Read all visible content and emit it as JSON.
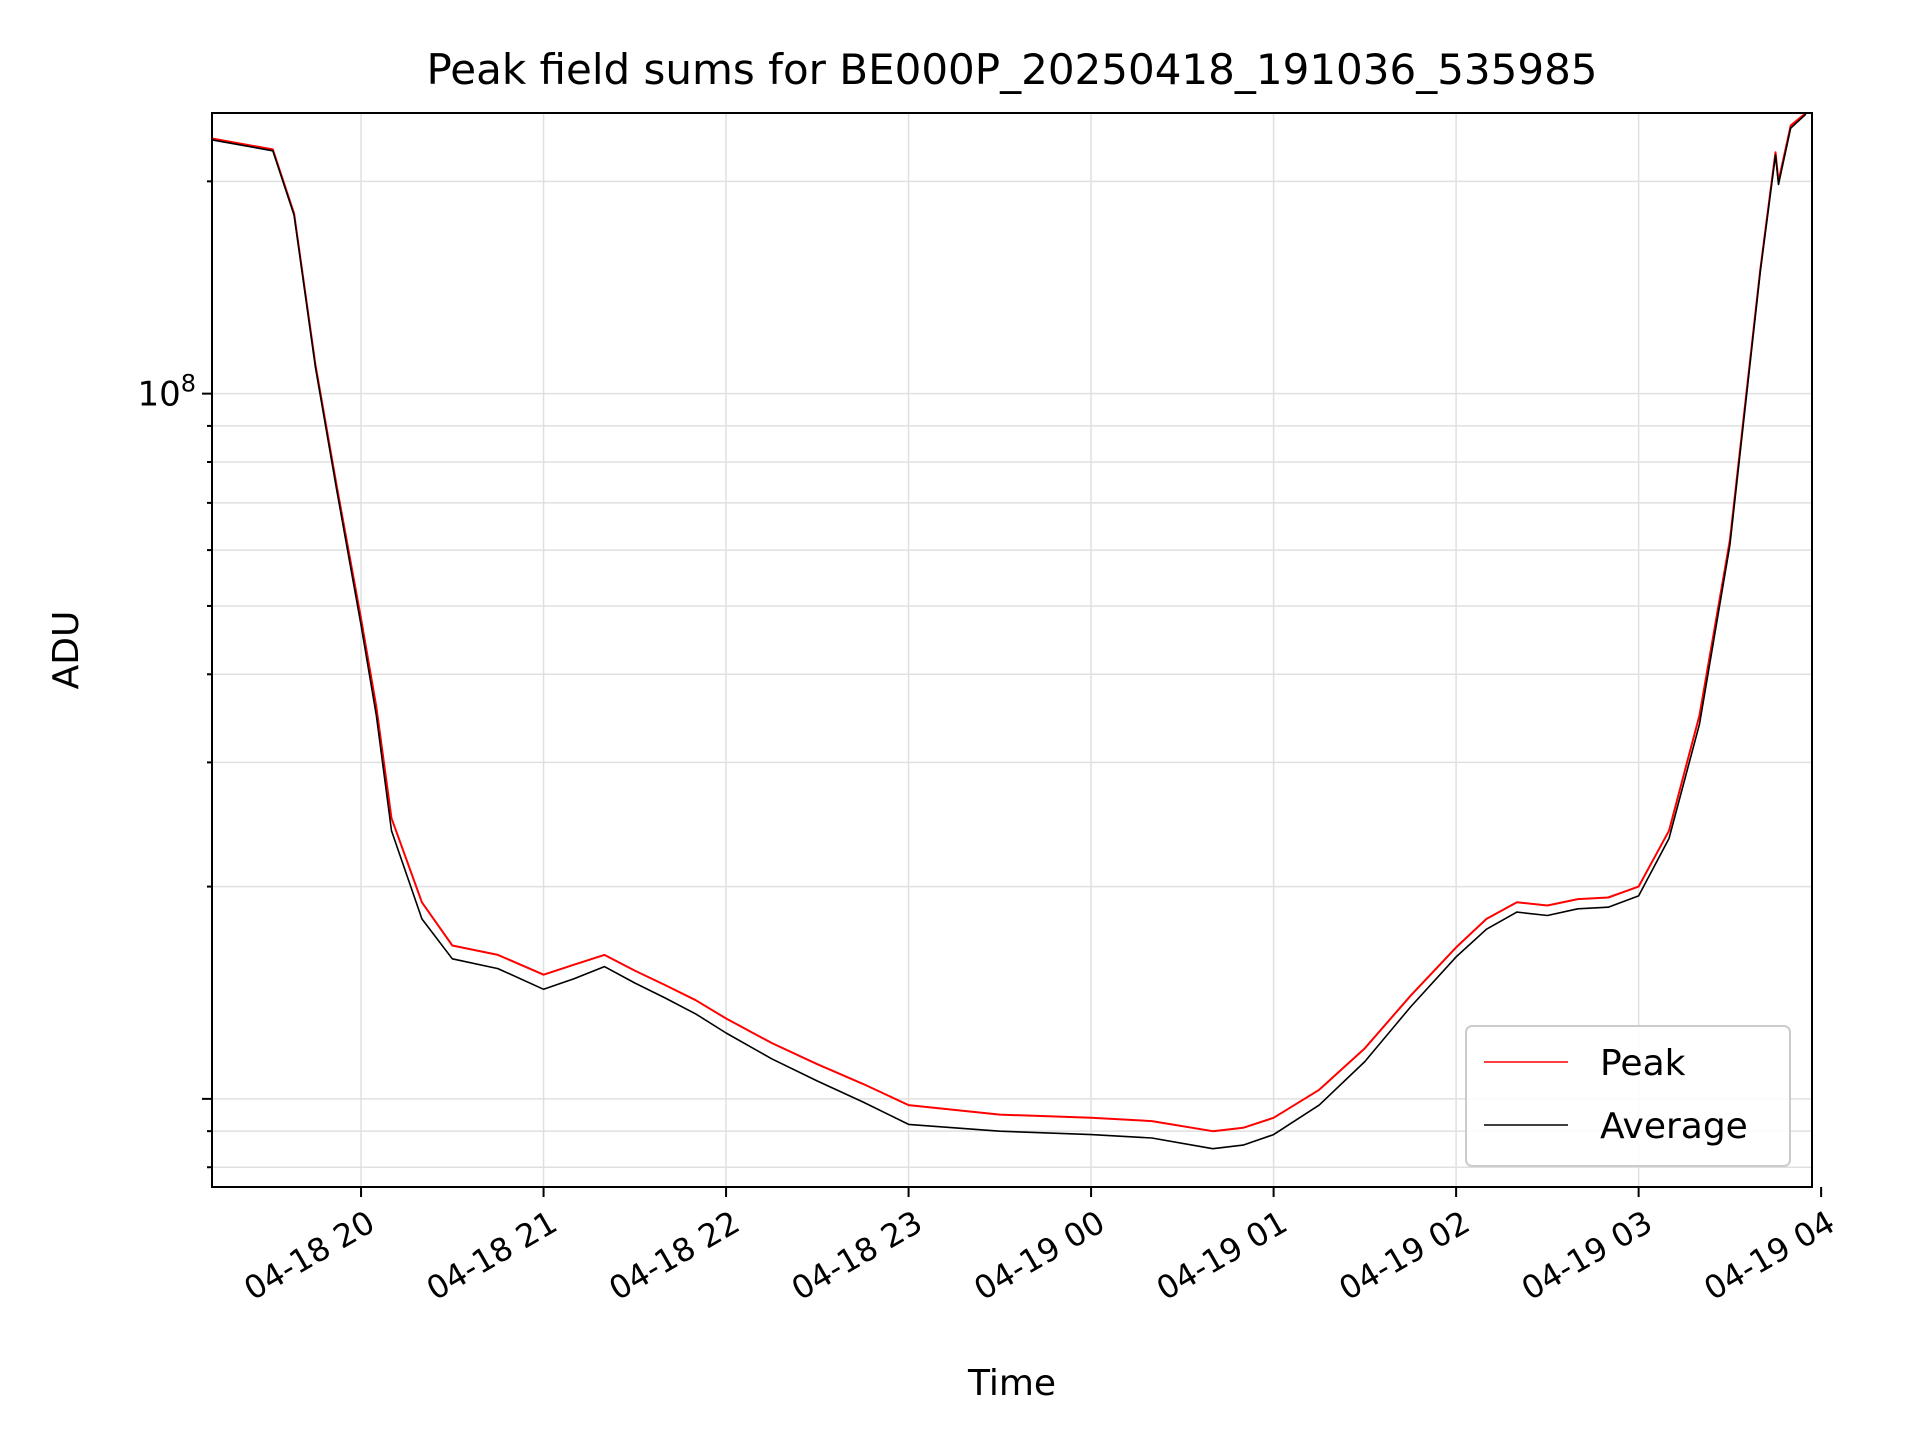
{
  "chart_data": {
    "type": "line",
    "title": "Peak field sums for BE000P_20250418_191036_535985",
    "xlabel": "Time",
    "ylabel": "ADU",
    "yscale": "log",
    "ylim": [
      7500000,
      250000000
    ],
    "xlim": [
      "2025-04-18 19:11",
      "2025-04-19 03:57"
    ],
    "grid": true,
    "legend": "lower right",
    "x_ticks": [
      "2025-04-18 20:00",
      "2025-04-18 21:00",
      "2025-04-18 22:00",
      "2025-04-18 23:00",
      "2025-04-19 00:00",
      "2025-04-19 01:00",
      "2025-04-19 02:00",
      "2025-04-19 03:00",
      "2025-04-19 04:00"
    ],
    "x_tick_labels": [
      "04-18 20",
      "04-18 21",
      "04-18 22",
      "04-18 23",
      "04-19 00",
      "04-19 01",
      "04-19 02",
      "04-19 03",
      "04-19 04"
    ],
    "y_tick_labels": [
      {
        "base": "10",
        "exp": "8",
        "value": 100000000
      }
    ],
    "x": [
      "2025-04-18 19:11",
      "2025-04-18 19:31",
      "2025-04-18 19:38",
      "2025-04-18 19:45",
      "2025-04-18 19:52",
      "2025-04-18 20:00",
      "2025-04-18 20:05",
      "2025-04-18 20:10",
      "2025-04-18 20:20",
      "2025-04-18 20:30",
      "2025-04-18 20:45",
      "2025-04-18 21:00",
      "2025-04-18 21:10",
      "2025-04-18 21:20",
      "2025-04-18 21:30",
      "2025-04-18 21:40",
      "2025-04-18 21:50",
      "2025-04-18 22:00",
      "2025-04-18 22:15",
      "2025-04-18 22:30",
      "2025-04-18 22:45",
      "2025-04-18 23:00",
      "2025-04-18 23:30",
      "2025-04-19 00:00",
      "2025-04-19 00:20",
      "2025-04-19 00:40",
      "2025-04-19 00:50",
      "2025-04-19 01:00",
      "2025-04-19 01:15",
      "2025-04-19 01:30",
      "2025-04-19 01:45",
      "2025-04-19 02:00",
      "2025-04-19 02:10",
      "2025-04-19 02:20",
      "2025-04-19 02:30",
      "2025-04-19 02:40",
      "2025-04-19 02:50",
      "2025-04-19 03:00",
      "2025-04-19 03:10",
      "2025-04-19 03:20",
      "2025-04-19 03:30",
      "2025-04-19 03:40",
      "2025-04-19 03:45",
      "2025-04-19 03:46",
      "2025-04-19 03:50",
      "2025-04-19 03:55"
    ],
    "series": [
      {
        "name": "Peak",
        "color": "#ff0000",
        "values": [
          230000000,
          222000000,
          180000000,
          110000000,
          74000000,
          48000000,
          36000000,
          25000000,
          19000000,
          16500000,
          16000000,
          15000000,
          15500000,
          16000000,
          15200000,
          14500000,
          13800000,
          13000000,
          12000000,
          11200000,
          10500000,
          9800000,
          9500000,
          9400000,
          9300000,
          9000000,
          9100000,
          9400000,
          10300000,
          11800000,
          14000000,
          16400000,
          18000000,
          19000000,
          18800000,
          19200000,
          19300000,
          20000000,
          24000000,
          35000000,
          62000000,
          150000000,
          220000000,
          200000000,
          240000000,
          250000000
        ]
      },
      {
        "name": "Average",
        "color": "#000000",
        "values": [
          229000000,
          221000000,
          179000000,
          109000000,
          73000000,
          47000000,
          35000000,
          24000000,
          18000000,
          15800000,
          15300000,
          14300000,
          14800000,
          15400000,
          14600000,
          13900000,
          13200000,
          12400000,
          11400000,
          10600000,
          9900000,
          9200000,
          9000000,
          8900000,
          8800000,
          8500000,
          8600000,
          8900000,
          9800000,
          11300000,
          13500000,
          15900000,
          17400000,
          18400000,
          18200000,
          18600000,
          18700000,
          19400000,
          23400000,
          34000000,
          61000000,
          149000000,
          218000000,
          198000000,
          238000000,
          249000000
        ]
      }
    ]
  }
}
